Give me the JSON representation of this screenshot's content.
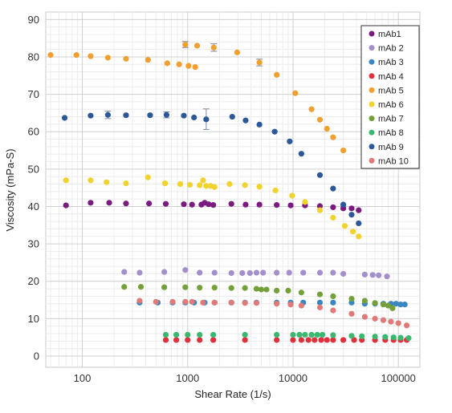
{
  "chart_data": {
    "type": "scatter",
    "xlabel": "Shear Rate (1/s)",
    "ylabel": "Viscosity (mPa-S)",
    "xscale": "log",
    "xlim": [
      45,
      160000
    ],
    "ylim": [
      -3,
      92
    ],
    "x_ticks": [
      100,
      1000,
      10000,
      100000
    ],
    "x_tick_labels": [
      "100",
      "1000",
      "10000",
      "100000"
    ],
    "y_ticks": [
      0,
      10,
      20,
      30,
      40,
      50,
      60,
      70,
      80,
      90
    ],
    "grid": true,
    "legend_position": "top-right",
    "series": [
      {
        "name": "mAb1",
        "color": "#7b1a7f",
        "points": [
          [
            70,
            40.3
          ],
          [
            120,
            41
          ],
          [
            180,
            41
          ],
          [
            260,
            40.8
          ],
          [
            430,
            40.8
          ],
          [
            620,
            40.7
          ],
          [
            920,
            40.6
          ],
          [
            1100,
            40.5
          ],
          [
            1350,
            40.5
          ],
          [
            1450,
            41
          ],
          [
            1580,
            40.6
          ],
          [
            1750,
            40.4
          ],
          [
            2600,
            40.7
          ],
          [
            3550,
            40.5
          ],
          [
            4800,
            40.5
          ],
          [
            7000,
            40.4
          ],
          [
            9500,
            40.3
          ],
          [
            13000,
            40.3
          ],
          [
            18000,
            40.1
          ],
          [
            24000,
            39.8
          ],
          [
            30000,
            39.5
          ],
          [
            36000,
            39.5
          ],
          [
            42000,
            39
          ]
        ]
      },
      {
        "name": "mAb 2",
        "color": "#a38fcb",
        "points": [
          [
            250,
            22.5
          ],
          [
            350,
            22.3
          ],
          [
            600,
            22.5
          ],
          [
            950,
            23
          ],
          [
            1300,
            22.3
          ],
          [
            1800,
            22.3
          ],
          [
            2600,
            22.2
          ],
          [
            3300,
            22.2
          ],
          [
            3900,
            22.2
          ],
          [
            4500,
            22.3
          ],
          [
            5200,
            22.3
          ],
          [
            7000,
            22.3
          ],
          [
            9200,
            22.3
          ],
          [
            12500,
            22.3
          ],
          [
            18000,
            22.3
          ],
          [
            24000,
            22.3
          ],
          [
            30000,
            22
          ],
          [
            48000,
            21.8
          ],
          [
            57000,
            21.7
          ],
          [
            65000,
            21.6
          ],
          [
            78000,
            21.3
          ]
        ]
      },
      {
        "name": "mAb 3",
        "color": "#3a86c1",
        "points": [
          [
            350,
            14.3
          ],
          [
            520,
            14.3
          ],
          [
            720,
            14.3
          ],
          [
            950,
            14.3
          ],
          [
            1150,
            14.3
          ],
          [
            1450,
            14.3
          ],
          [
            1800,
            14.3
          ],
          [
            2600,
            14.3
          ],
          [
            3500,
            14.3
          ],
          [
            4500,
            14.3
          ],
          [
            7000,
            14.3
          ],
          [
            9500,
            14.3
          ],
          [
            12500,
            14.3
          ],
          [
            18000,
            14.3
          ],
          [
            24000,
            14.3
          ],
          [
            36000,
            14.3
          ],
          [
            48000,
            14
          ],
          [
            60000,
            14
          ],
          [
            72000,
            14
          ],
          [
            85000,
            14
          ],
          [
            95000,
            14
          ],
          [
            105000,
            13.8
          ],
          [
            115000,
            13.8
          ]
        ]
      },
      {
        "name": "mAb 4",
        "color": "#e0303c",
        "points": [
          [
            620,
            4.3
          ],
          [
            780,
            4.3
          ],
          [
            1000,
            4.3
          ],
          [
            1300,
            4.3
          ],
          [
            1750,
            4.3
          ],
          [
            3500,
            4.3
          ],
          [
            7000,
            4.3
          ],
          [
            10000,
            4.3
          ],
          [
            12000,
            4.3
          ],
          [
            14000,
            4.3
          ],
          [
            16000,
            4.3
          ],
          [
            18500,
            4.3
          ],
          [
            21000,
            4.3
          ],
          [
            24000,
            4.3
          ],
          [
            30000,
            4.3
          ],
          [
            38000,
            4.3
          ],
          [
            45000,
            4.3
          ],
          [
            60000,
            4.3
          ],
          [
            75000,
            4.3
          ],
          [
            90000,
            4.3
          ],
          [
            105000,
            4.3
          ],
          [
            120000,
            4.3
          ]
        ]
      },
      {
        "name": "mAb 5",
        "color": "#f0a030",
        "points": [
          [
            50,
            80.5
          ],
          [
            88,
            80.5
          ],
          [
            120,
            80.2
          ],
          [
            175,
            79.8
          ],
          [
            260,
            79.5
          ],
          [
            420,
            79.2
          ],
          [
            640,
            78.3
          ],
          [
            830,
            78
          ],
          [
            950,
            83.3
          ],
          [
            1020,
            77.6
          ],
          [
            1180,
            77.3
          ],
          [
            1230,
            83
          ],
          [
            1770,
            82.5
          ],
          [
            2950,
            81.2
          ],
          [
            4800,
            78.5
          ],
          [
            7000,
            75.2
          ],
          [
            10500,
            70.3
          ],
          [
            15000,
            66
          ],
          [
            18000,
            63.2
          ],
          [
            21000,
            60.8
          ],
          [
            24000,
            58.5
          ],
          [
            30000,
            55
          ]
        ]
      },
      {
        "name": "mAb 6",
        "color": "#f2d22c",
        "points": [
          [
            70,
            47
          ],
          [
            120,
            47
          ],
          [
            170,
            46.5
          ],
          [
            260,
            46.2
          ],
          [
            420,
            47.8
          ],
          [
            610,
            46.2
          ],
          [
            850,
            46
          ],
          [
            1050,
            45.8
          ],
          [
            1300,
            45.7
          ],
          [
            1400,
            47
          ],
          [
            1500,
            45.5
          ],
          [
            1650,
            45.5
          ],
          [
            1800,
            45.2
          ],
          [
            2500,
            46
          ],
          [
            3500,
            45.7
          ],
          [
            4800,
            45.3
          ],
          [
            6800,
            44.3
          ],
          [
            9800,
            42.9
          ],
          [
            13000,
            41.2
          ],
          [
            18000,
            39
          ],
          [
            24000,
            37
          ],
          [
            31000,
            34.8
          ],
          [
            37000,
            33.3
          ],
          [
            42000,
            32
          ]
        ]
      },
      {
        "name": "mAb 7",
        "color": "#74a03a",
        "points": [
          [
            250,
            18.5
          ],
          [
            360,
            18.5
          ],
          [
            600,
            18.4
          ],
          [
            950,
            18.4
          ],
          [
            1300,
            18.3
          ],
          [
            1800,
            18.3
          ],
          [
            2600,
            18.2
          ],
          [
            3500,
            18.2
          ],
          [
            4500,
            18
          ],
          [
            5000,
            17.8
          ],
          [
            5600,
            17.8
          ],
          [
            7000,
            17.5
          ],
          [
            9000,
            17.5
          ],
          [
            12000,
            17
          ],
          [
            18000,
            16.5
          ],
          [
            24000,
            16
          ],
          [
            36000,
            15.3
          ],
          [
            48000,
            14.8
          ],
          [
            60000,
            14.2
          ],
          [
            72000,
            13.8
          ],
          [
            80000,
            13.5
          ],
          [
            88000,
            12.8
          ]
        ]
      },
      {
        "name": "mAb 8",
        "color": "#3ab870",
        "points": [
          [
            620,
            5.7
          ],
          [
            780,
            5.7
          ],
          [
            1000,
            5.7
          ],
          [
            1300,
            5.7
          ],
          [
            1750,
            5.7
          ],
          [
            3500,
            5.7
          ],
          [
            7000,
            5.7
          ],
          [
            10000,
            5.7
          ],
          [
            11500,
            5.7
          ],
          [
            13000,
            5.7
          ],
          [
            15000,
            5.7
          ],
          [
            17000,
            5.7
          ],
          [
            19000,
            5.7
          ],
          [
            24000,
            5.6
          ],
          [
            36000,
            5.4
          ],
          [
            45000,
            5.3
          ],
          [
            60000,
            5.2
          ],
          [
            75000,
            5.1
          ],
          [
            90000,
            5
          ],
          [
            105000,
            4.9
          ],
          [
            125000,
            4.8
          ]
        ]
      },
      {
        "name": "mAb 9",
        "color": "#2c5799",
        "points": [
          [
            68,
            63.7
          ],
          [
            120,
            64.3
          ],
          [
            175,
            64.5
          ],
          [
            260,
            64.4
          ],
          [
            440,
            64.4
          ],
          [
            630,
            64.5
          ],
          [
            920,
            64.3
          ],
          [
            1150,
            63.8
          ],
          [
            1500,
            63.3
          ],
          [
            2650,
            64
          ],
          [
            3550,
            63
          ],
          [
            4800,
            61.9
          ],
          [
            6700,
            60
          ],
          [
            9300,
            57.4
          ],
          [
            12000,
            54.1
          ],
          [
            18000,
            48.4
          ],
          [
            24000,
            44.8
          ],
          [
            30000,
            40.5
          ],
          [
            36000,
            37.8
          ],
          [
            42000,
            35.5
          ]
        ]
      },
      {
        "name": "mAb 10",
        "color": "#e07a78",
        "points": [
          [
            350,
            14.8
          ],
          [
            500,
            14.5
          ],
          [
            720,
            14.5
          ],
          [
            950,
            14.5
          ],
          [
            1100,
            14.5
          ],
          [
            1400,
            14.3
          ],
          [
            1800,
            14.3
          ],
          [
            2600,
            14.3
          ],
          [
            3500,
            14.2
          ],
          [
            4500,
            14.2
          ],
          [
            7000,
            14
          ],
          [
            9500,
            13.8
          ],
          [
            12000,
            13.5
          ],
          [
            18000,
            13
          ],
          [
            24000,
            12.2
          ],
          [
            36000,
            11.3
          ],
          [
            48000,
            10.5
          ],
          [
            60000,
            10
          ],
          [
            72000,
            9.6
          ],
          [
            85000,
            9.2
          ],
          [
            100000,
            8.8
          ],
          [
            120000,
            8.2
          ]
        ]
      }
    ],
    "error_bars": [
      {
        "series": "mAb 9",
        "x": 1500,
        "y": 63.3,
        "low": 60.6,
        "high": 66.1
      },
      {
        "series": "mAb 9",
        "x": 175,
        "y": 64.5,
        "low": 63.5,
        "high": 65.5
      },
      {
        "series": "mAb 9",
        "x": 630,
        "y": 64.5,
        "low": 63.7,
        "high": 65.3
      },
      {
        "series": "mAb 5",
        "x": 1770,
        "y": 82.5,
        "low": 81.5,
        "high": 83.5
      },
      {
        "series": "mAb 5",
        "x": 4800,
        "y": 78.5,
        "low": 77.6,
        "high": 79.4
      },
      {
        "series": "mAb 5",
        "x": 950,
        "y": 83.3,
        "low": 82.5,
        "high": 84.1
      }
    ]
  }
}
